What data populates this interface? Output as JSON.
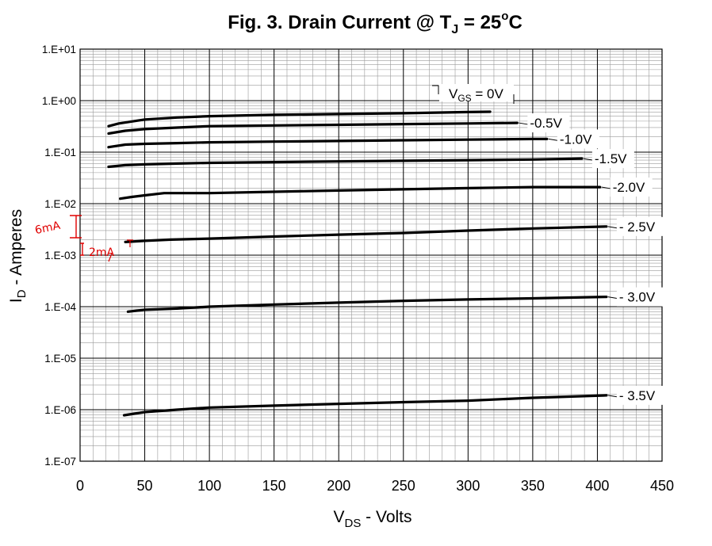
{
  "chart_data": {
    "type": "line",
    "title": {
      "prefix": "Fig. 3. Drain Current @ T",
      "sub": "J",
      "mid": " = 25",
      "sup": "o",
      "suffix": "C"
    },
    "xlabel": {
      "main": "V",
      "sub": "DS",
      "rest": " - Volts"
    },
    "ylabel": {
      "main": "I",
      "sub": "D",
      "rest": " - Amperes"
    },
    "x_ticks": [
      "0",
      "50",
      "100",
      "150",
      "200",
      "250",
      "300",
      "350",
      "400",
      "450"
    ],
    "y_ticks": [
      "1.E+01",
      "1.E+00",
      "1.E-01",
      "1.E-02",
      "1.E-03",
      "1.E-04",
      "1.E-05",
      "1.E-06",
      "1.E-07"
    ],
    "xlim": [
      0,
      450
    ],
    "ylim": [
      1e-07,
      10
    ],
    "y_scale": "log",
    "grid": true,
    "series": [
      {
        "name": "0V",
        "color": "#000000",
        "x": [
          22,
          30,
          50,
          75,
          100,
          150,
          200,
          250,
          300,
          317
        ],
        "y": [
          0.32,
          0.36,
          0.43,
          0.47,
          0.5,
          0.53,
          0.55,
          0.57,
          0.6,
          0.61
        ]
      },
      {
        "name": "-0.5V",
        "color": "#000000",
        "x": [
          22,
          35,
          50,
          75,
          100,
          150,
          200,
          250,
          300,
          338
        ],
        "y": [
          0.23,
          0.26,
          0.28,
          0.3,
          0.32,
          0.33,
          0.34,
          0.35,
          0.36,
          0.37
        ]
      },
      {
        "name": "-1.0V",
        "color": "#000000",
        "x": [
          22,
          35,
          50,
          75,
          100,
          150,
          200,
          250,
          300,
          350,
          361
        ],
        "y": [
          0.125,
          0.14,
          0.145,
          0.15,
          0.155,
          0.16,
          0.165,
          0.17,
          0.175,
          0.18,
          0.18
        ]
      },
      {
        "name": "-1.5V",
        "color": "#000000",
        "x": [
          22,
          35,
          50,
          75,
          100,
          150,
          200,
          250,
          300,
          350,
          388
        ],
        "y": [
          0.052,
          0.056,
          0.058,
          0.06,
          0.062,
          0.064,
          0.066,
          0.068,
          0.07,
          0.072,
          0.075
        ]
      },
      {
        "name": "-2.0V",
        "color": "#000000",
        "x": [
          31,
          40,
          50,
          65,
          100,
          150,
          200,
          250,
          300,
          350,
          402
        ],
        "y": [
          0.0125,
          0.0135,
          0.0145,
          0.016,
          0.016,
          0.017,
          0.018,
          0.019,
          0.02,
          0.021,
          0.021
        ]
      },
      {
        "name": "- 2.5V",
        "color": "#000000",
        "x": [
          35,
          50,
          70,
          100,
          150,
          200,
          250,
          300,
          350,
          407
        ],
        "y": [
          0.0018,
          0.0019,
          0.002,
          0.0021,
          0.0023,
          0.0025,
          0.0027,
          0.003,
          0.0033,
          0.0036
        ]
      },
      {
        "name": "- 3.0V",
        "color": "#000000",
        "x": [
          37,
          50,
          75,
          100,
          150,
          200,
          250,
          300,
          350,
          407
        ],
        "y": [
          8e-05,
          8.7e-05,
          9.2e-05,
          0.0001,
          0.00011,
          0.00012,
          0.00013,
          0.000138,
          0.000145,
          0.000155
        ]
      },
      {
        "name": "- 3.5V",
        "color": "#000000",
        "x": [
          34,
          50,
          75,
          100,
          150,
          200,
          250,
          300,
          350,
          407
        ],
        "y": [
          7.8e-07,
          9e-07,
          1e-06,
          1.1e-06,
          1.2e-06,
          1.3e-06,
          1.4e-06,
          1.5e-06,
          1.7e-06,
          1.9e-06
        ]
      }
    ],
    "vgs_label": {
      "main": "V",
      "sub": "GS",
      "rest": " = 0V"
    },
    "handwritten_annotations": [
      "6mA",
      "2mA"
    ],
    "annotation_color": "#e00000"
  }
}
